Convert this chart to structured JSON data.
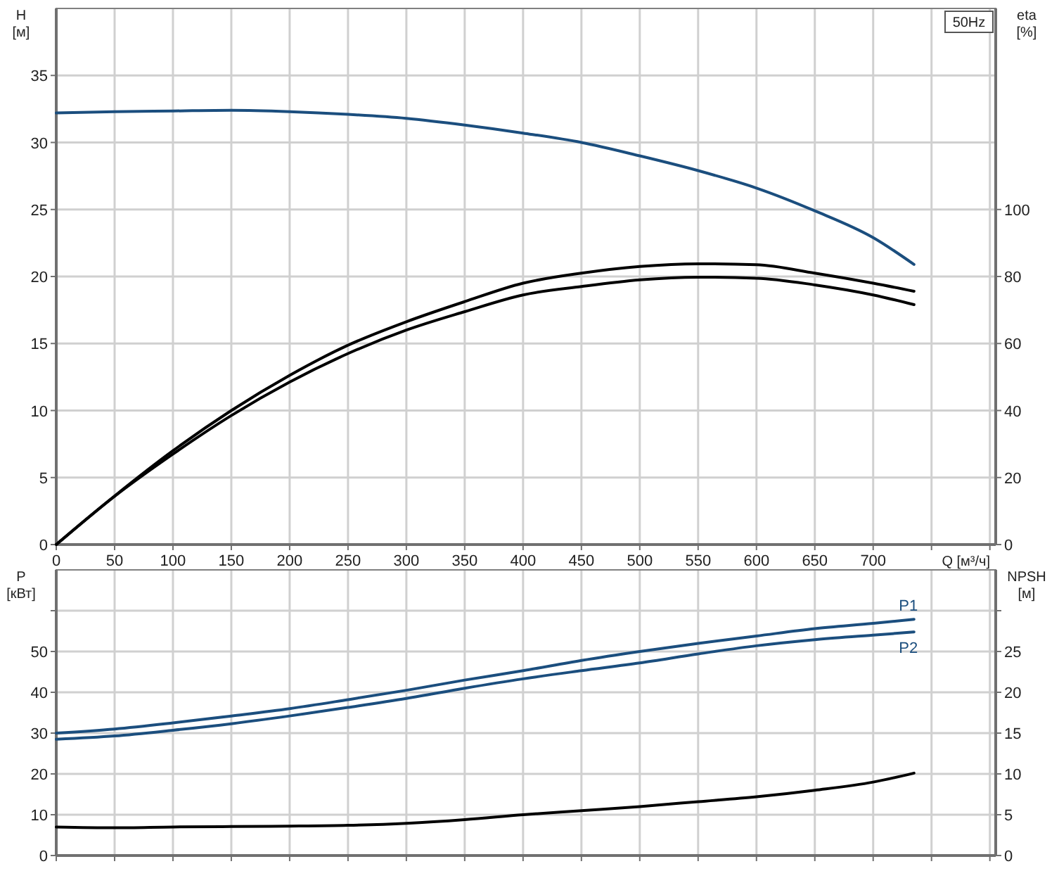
{
  "chart_data": [
    {
      "type": "line",
      "xlabel": "Q [м³/ч]",
      "ylabel": "H [м]",
      "y2label": "eta [%]",
      "annotations": [
        "50Hz"
      ],
      "grid": true,
      "tick_labels": "xy",
      "x": [
        0,
        50,
        100,
        150,
        200,
        250,
        300,
        350,
        400,
        450,
        500,
        550,
        600,
        650,
        700,
        735
      ],
      "xlim": [
        0,
        805
      ],
      "xticks": [
        0,
        50,
        100,
        150,
        200,
        250,
        300,
        350,
        400,
        450,
        500,
        550,
        600,
        650,
        700,
        {
          "value": 750,
          "label": null
        },
        {
          "value": 800,
          "label": null
        }
      ],
      "ylim": [
        0,
        40
      ],
      "yticks": [
        0,
        5,
        10,
        15,
        20,
        25,
        30,
        35
      ],
      "y2lim": [
        0,
        160
      ],
      "y2ticks": [
        0,
        20,
        40,
        60,
        80,
        100
      ],
      "series": [
        {
          "color": "#1b4e7e",
          "values": [
            32.2,
            32.3,
            32.35,
            32.4,
            32.3,
            32.1,
            31.8,
            31.3,
            30.7,
            30.0,
            29.0,
            27.9,
            26.6,
            24.9,
            22.9,
            20.9
          ]
        },
        {
          "color": "#000000",
          "axis": "y2",
          "values": [
            0,
            14.5,
            28,
            40,
            50.5,
            59.5,
            66.5,
            72.5,
            78,
            81,
            83,
            83.8,
            83.5,
            81,
            78,
            75.6
          ]
        },
        {
          "color": "#000000",
          "axis": "y2",
          "values": [
            0,
            14.4,
            27,
            38.5,
            48.5,
            57,
            64,
            69.5,
            74.5,
            77,
            79,
            79.8,
            79.5,
            77.5,
            74.5,
            71.6
          ]
        }
      ]
    },
    {
      "type": "line",
      "ylabel": "P [кВт]",
      "y2label": "NPSH [м]",
      "grid": true,
      "tick_labels": "y",
      "x": [
        0,
        50,
        100,
        150,
        200,
        250,
        300,
        350,
        400,
        450,
        500,
        550,
        600,
        650,
        700,
        735
      ],
      "xlim": [
        0,
        805
      ],
      "xticks": [
        0,
        50,
        100,
        150,
        200,
        250,
        300,
        350,
        400,
        450,
        500,
        550,
        600,
        650,
        700,
        750,
        800
      ],
      "ylim": [
        0,
        70
      ],
      "yticks": [
        0,
        10,
        20,
        30,
        40,
        50,
        {
          "value": 60,
          "label": null
        }
      ],
      "y2lim": [
        0,
        35
      ],
      "y2ticks": [
        0,
        5,
        10,
        15,
        20,
        25,
        {
          "value": 30,
          "label": null
        }
      ],
      "series": [
        {
          "name": "P1",
          "color": "#1b4e7e",
          "values": [
            30,
            31,
            32.5,
            34.2,
            36,
            38.2,
            40.5,
            43,
            45.3,
            47.8,
            50,
            52,
            53.8,
            55.6,
            56.9,
            57.9
          ]
        },
        {
          "name": "P2",
          "color": "#1b4e7e",
          "values": [
            28.5,
            29.3,
            30.7,
            32.3,
            34.2,
            36.3,
            38.5,
            41,
            43.3,
            45.3,
            47.2,
            49.4,
            51.4,
            52.9,
            54,
            54.8
          ]
        },
        {
          "color": "#000000",
          "axis": "y2",
          "values": [
            3.5,
            3.4,
            3.5,
            3.55,
            3.6,
            3.7,
            3.95,
            4.4,
            5.0,
            5.5,
            6.0,
            6.6,
            7.2,
            8.0,
            9.0,
            10.1
          ]
        }
      ]
    }
  ]
}
